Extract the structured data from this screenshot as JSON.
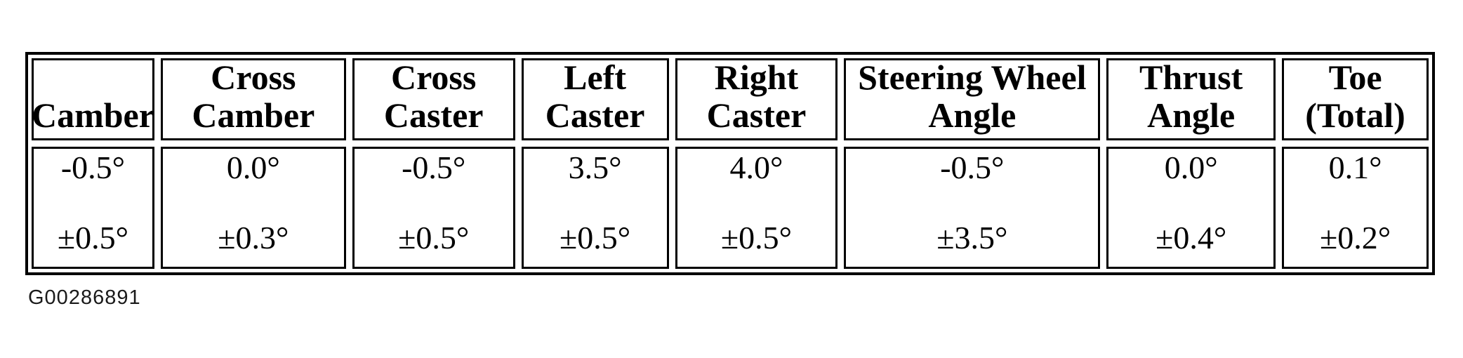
{
  "figure_id": "G00286891",
  "colors": {
    "ink": "#000000",
    "paper": "#ffffff"
  },
  "table": {
    "columns": [
      {
        "header_lines": [
          "Camber"
        ],
        "value": "-0.5°",
        "tolerance": "±0.5°"
      },
      {
        "header_lines": [
          "Cross",
          "Camber"
        ],
        "value": "0.0°",
        "tolerance": "±0.3°"
      },
      {
        "header_lines": [
          "Cross",
          "Caster"
        ],
        "value": "-0.5°",
        "tolerance": "±0.5°"
      },
      {
        "header_lines": [
          "Left",
          "Caster"
        ],
        "value": "3.5°",
        "tolerance": "±0.5°"
      },
      {
        "header_lines": [
          "Right",
          "Caster"
        ],
        "value": "4.0°",
        "tolerance": "±0.5°"
      },
      {
        "header_lines": [
          "Steering Wheel",
          "Angle"
        ],
        "value": "-0.5°",
        "tolerance": "±3.5°"
      },
      {
        "header_lines": [
          "Thrust",
          "Angle"
        ],
        "value": "0.0°",
        "tolerance": "±0.4°"
      },
      {
        "header_lines": [
          "Toe",
          "(Total)"
        ],
        "value": "0.1°",
        "tolerance": "±0.2°"
      }
    ]
  }
}
